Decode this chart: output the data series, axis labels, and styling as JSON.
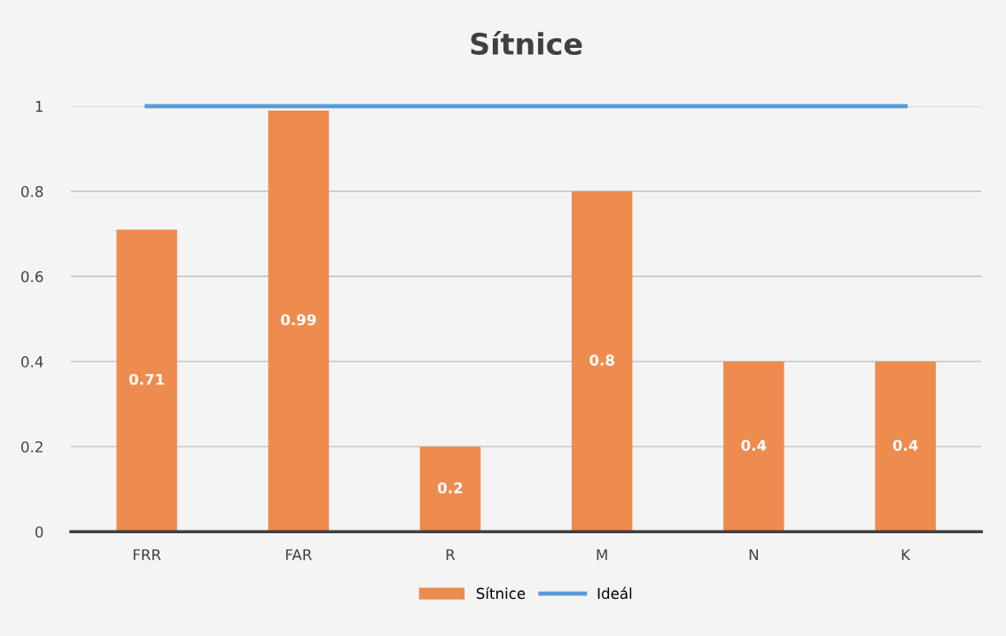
{
  "chart_data": {
    "type": "bar",
    "title": "Sítnice",
    "categories": [
      "FRR",
      "FAR",
      "R",
      "M",
      "N",
      "K"
    ],
    "series": [
      {
        "name": "Sítnice",
        "color": "#ed8c4e",
        "values": [
          0.71,
          0.99,
          0.2,
          0.8,
          0.4,
          0.4
        ],
        "data_labels": true
      },
      {
        "name": "Ideál",
        "type": "line",
        "color": "#5b9bd5",
        "values": [
          1,
          1,
          1,
          1,
          1,
          1
        ]
      }
    ],
    "ylim": [
      0,
      1
    ],
    "yticks": [
      0,
      0.2,
      0.4,
      0.6,
      0.8,
      1
    ],
    "grid": "y",
    "legend": "bottom",
    "marker": "none",
    "line_style": "solid"
  }
}
